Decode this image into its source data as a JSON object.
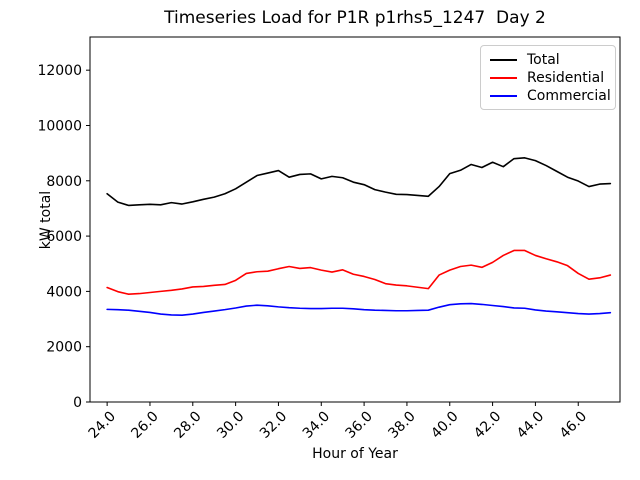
{
  "figure": {
    "background": "#ffffff"
  },
  "chart_data": {
    "type": "line",
    "title": "Timeseries Load for P1R p1rhs5_1247  Day 2",
    "xlabel": "Hour of Year",
    "ylabel": "kW total",
    "grid": false,
    "legend_position": "upper right",
    "xlim": [
      23.2,
      47.95
    ],
    "ylim": [
      0,
      13200
    ],
    "xticks": {
      "values": [
        24,
        26,
        28,
        30,
        32,
        34,
        36,
        38,
        40,
        42,
        44,
        46
      ],
      "labels": [
        "24.0",
        "26.0",
        "28.0",
        "30.0",
        "32.0",
        "34.0",
        "36.0",
        "38.0",
        "40.0",
        "42.0",
        "44.0",
        "46.0"
      ]
    },
    "yticks": {
      "values": [
        0,
        2000,
        4000,
        6000,
        8000,
        10000,
        12000
      ],
      "labels": [
        "0",
        "2000",
        "4000",
        "6000",
        "8000",
        "10000",
        "12000"
      ]
    },
    "x": [
      24.0,
      24.5,
      25.0,
      25.5,
      26.0,
      26.5,
      27.0,
      27.5,
      28.0,
      28.5,
      29.0,
      29.5,
      30.0,
      30.5,
      31.0,
      31.5,
      32.0,
      32.5,
      33.0,
      33.5,
      34.0,
      34.5,
      35.0,
      35.5,
      36.0,
      36.5,
      37.0,
      37.5,
      38.0,
      38.5,
      39.0,
      39.5,
      40.0,
      40.5,
      41.0,
      41.5,
      42.0,
      42.5,
      43.0,
      43.5,
      44.0,
      44.5,
      45.0,
      45.5,
      46.0,
      46.5,
      47.0,
      47.5
    ],
    "series": [
      {
        "name": "Total",
        "color": "#000000",
        "values": [
          7530,
          7230,
          7110,
          7130,
          7150,
          7130,
          7210,
          7160,
          7240,
          7330,
          7410,
          7530,
          7710,
          7950,
          8190,
          8280,
          8370,
          8130,
          8230,
          8250,
          8070,
          8160,
          8110,
          7950,
          7860,
          7680,
          7590,
          7510,
          7500,
          7470,
          7440,
          7790,
          8260,
          8380,
          8590,
          8480,
          8670,
          8510,
          8800,
          8830,
          8730,
          8550,
          8340,
          8130,
          7990,
          7790,
          7880,
          7900
        ]
      },
      {
        "name": "Residential",
        "color": "#ff0000",
        "values": [
          4140,
          3990,
          3900,
          3920,
          3960,
          4000,
          4040,
          4090,
          4160,
          4180,
          4220,
          4250,
          4400,
          4650,
          4710,
          4730,
          4820,
          4900,
          4830,
          4860,
          4770,
          4700,
          4780,
          4620,
          4540,
          4430,
          4280,
          4230,
          4200,
          4150,
          4100,
          4590,
          4770,
          4900,
          4950,
          4870,
          5050,
          5300,
          5480,
          5480,
          5300,
          5180,
          5070,
          4930,
          4650,
          4440,
          4490,
          4590
        ]
      },
      {
        "name": "Commercial",
        "color": "#0000ff",
        "values": [
          3350,
          3340,
          3320,
          3280,
          3240,
          3180,
          3150,
          3140,
          3180,
          3240,
          3290,
          3340,
          3400,
          3470,
          3500,
          3480,
          3440,
          3410,
          3390,
          3380,
          3380,
          3390,
          3390,
          3370,
          3340,
          3320,
          3310,
          3300,
          3300,
          3310,
          3320,
          3430,
          3520,
          3550,
          3560,
          3530,
          3490,
          3450,
          3400,
          3390,
          3330,
          3290,
          3260,
          3230,
          3200,
          3180,
          3200,
          3230
        ]
      }
    ]
  }
}
